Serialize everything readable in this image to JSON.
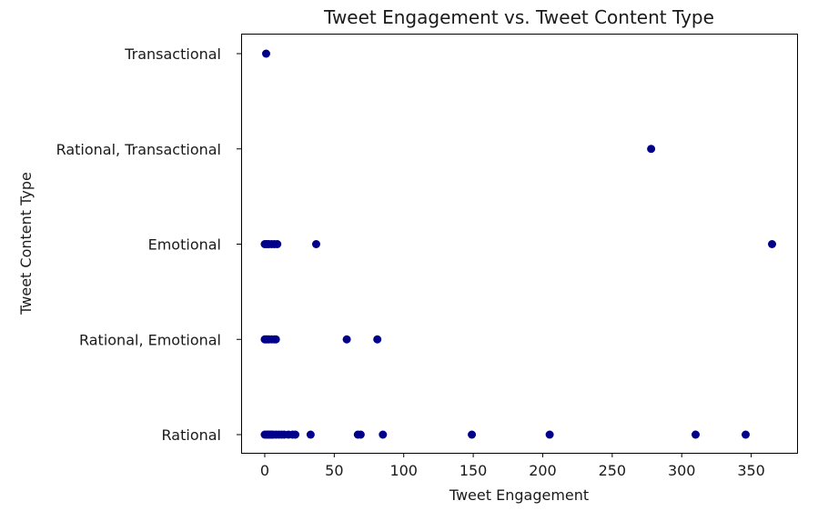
{
  "chart_data": {
    "type": "scatter",
    "title": "Tweet Engagement vs. Tweet Content Type",
    "xlabel": "Tweet Engagement",
    "ylabel": "Tweet Content Type",
    "xlim": [
      -17,
      383
    ],
    "x_ticks": [
      0,
      50,
      100,
      150,
      200,
      250,
      300,
      350
    ],
    "categories": [
      "Rational",
      "Rational, Emotional",
      "Emotional",
      "Rational, Transactional",
      "Transactional"
    ],
    "grid": false,
    "marker_color": "#00008b",
    "series": [
      {
        "points": [
          {
            "x": 0,
            "y": "Rational"
          },
          {
            "x": 1,
            "y": "Rational"
          },
          {
            "x": 2,
            "y": "Rational"
          },
          {
            "x": 3,
            "y": "Rational"
          },
          {
            "x": 4,
            "y": "Rational"
          },
          {
            "x": 5,
            "y": "Rational"
          },
          {
            "x": 6,
            "y": "Rational"
          },
          {
            "x": 8,
            "y": "Rational"
          },
          {
            "x": 10,
            "y": "Rational"
          },
          {
            "x": 12,
            "y": "Rational"
          },
          {
            "x": 14,
            "y": "Rational"
          },
          {
            "x": 17,
            "y": "Rational"
          },
          {
            "x": 20,
            "y": "Rational"
          },
          {
            "x": 22,
            "y": "Rational"
          },
          {
            "x": 33,
            "y": "Rational"
          },
          {
            "x": 67,
            "y": "Rational"
          },
          {
            "x": 69,
            "y": "Rational"
          },
          {
            "x": 85,
            "y": "Rational"
          },
          {
            "x": 149,
            "y": "Rational"
          },
          {
            "x": 205,
            "y": "Rational"
          },
          {
            "x": 310,
            "y": "Rational"
          },
          {
            "x": 346,
            "y": "Rational"
          },
          {
            "x": 0,
            "y": "Rational, Emotional"
          },
          {
            "x": 1,
            "y": "Rational, Emotional"
          },
          {
            "x": 2,
            "y": "Rational, Emotional"
          },
          {
            "x": 3,
            "y": "Rational, Emotional"
          },
          {
            "x": 5,
            "y": "Rational, Emotional"
          },
          {
            "x": 7,
            "y": "Rational, Emotional"
          },
          {
            "x": 8,
            "y": "Rational, Emotional"
          },
          {
            "x": 59,
            "y": "Rational, Emotional"
          },
          {
            "x": 81,
            "y": "Rational, Emotional"
          },
          {
            "x": 0,
            "y": "Emotional"
          },
          {
            "x": 1,
            "y": "Emotional"
          },
          {
            "x": 2,
            "y": "Emotional"
          },
          {
            "x": 3,
            "y": "Emotional"
          },
          {
            "x": 5,
            "y": "Emotional"
          },
          {
            "x": 7,
            "y": "Emotional"
          },
          {
            "x": 9,
            "y": "Emotional"
          },
          {
            "x": 37,
            "y": "Emotional"
          },
          {
            "x": 365,
            "y": "Emotional"
          },
          {
            "x": 278,
            "y": "Rational, Transactional"
          },
          {
            "x": 1,
            "y": "Transactional"
          }
        ]
      }
    ]
  }
}
